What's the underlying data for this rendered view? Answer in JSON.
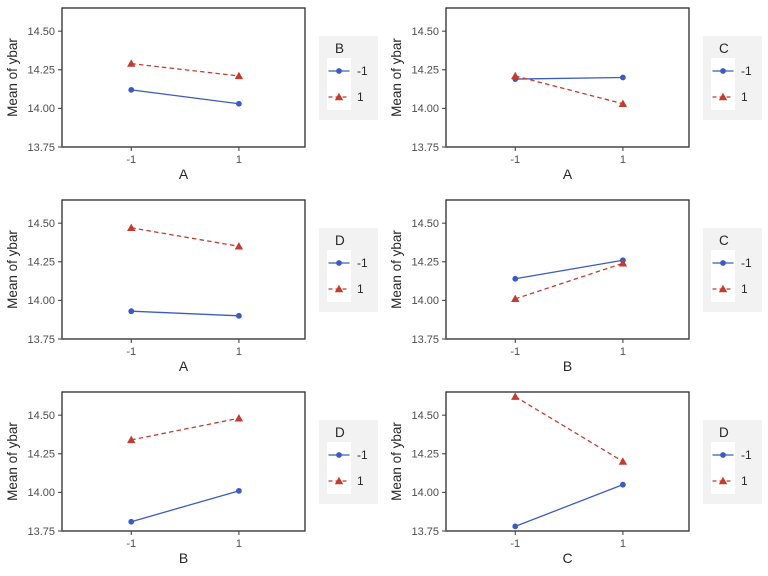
{
  "colors": {
    "series_neg1": "#3C5BC0",
    "series_pos1": "#C23C32",
    "panel_border": "#3A3A3A",
    "tick_text": "#4D4D4D",
    "axis_text": "#262626",
    "legend_bg": "#F2F2F2",
    "legend_key_bg": "#FFFFFF",
    "background": "#FFFFFF"
  },
  "chart_data": [
    {
      "type": "line",
      "xlabel": "A",
      "ylabel": "Mean of ybar",
      "legend_title": "B",
      "legend_position": "right",
      "grid": false,
      "x_categories": [
        "-1",
        "1"
      ],
      "yticks": [
        13.75,
        14.0,
        14.25,
        14.5
      ],
      "ylim": [
        13.75,
        14.65
      ],
      "series": [
        {
          "name": "-1",
          "marker": "circle",
          "line": "solid",
          "color_key": "series_neg1",
          "values": [
            14.12,
            14.03
          ]
        },
        {
          "name": "1",
          "marker": "triangle",
          "line": "dashed",
          "color_key": "series_pos1",
          "values": [
            14.29,
            14.21
          ]
        }
      ]
    },
    {
      "type": "line",
      "xlabel": "A",
      "ylabel": "Mean of ybar",
      "legend_title": "C",
      "legend_position": "right",
      "grid": false,
      "x_categories": [
        "-1",
        "1"
      ],
      "yticks": [
        13.75,
        14.0,
        14.25,
        14.5
      ],
      "ylim": [
        13.75,
        14.65
      ],
      "series": [
        {
          "name": "-1",
          "marker": "circle",
          "line": "solid",
          "color_key": "series_neg1",
          "values": [
            14.19,
            14.2
          ]
        },
        {
          "name": "1",
          "marker": "triangle",
          "line": "dashed",
          "color_key": "series_pos1",
          "values": [
            14.21,
            14.03
          ]
        }
      ]
    },
    {
      "type": "line",
      "xlabel": "A",
      "ylabel": "Mean of ybar",
      "legend_title": "D",
      "legend_position": "right",
      "grid": false,
      "x_categories": [
        "-1",
        "1"
      ],
      "yticks": [
        13.75,
        14.0,
        14.25,
        14.5
      ],
      "ylim": [
        13.75,
        14.65
      ],
      "series": [
        {
          "name": "-1",
          "marker": "circle",
          "line": "solid",
          "color_key": "series_neg1",
          "values": [
            13.93,
            13.9
          ]
        },
        {
          "name": "1",
          "marker": "triangle",
          "line": "dashed",
          "color_key": "series_pos1",
          "values": [
            14.47,
            14.35
          ]
        }
      ]
    },
    {
      "type": "line",
      "xlabel": "B",
      "ylabel": "Mean of ybar",
      "legend_title": "C",
      "legend_position": "right",
      "grid": false,
      "x_categories": [
        "-1",
        "1"
      ],
      "yticks": [
        13.75,
        14.0,
        14.25,
        14.5
      ],
      "ylim": [
        13.75,
        14.65
      ],
      "series": [
        {
          "name": "-1",
          "marker": "circle",
          "line": "solid",
          "color_key": "series_neg1",
          "values": [
            14.14,
            14.26
          ]
        },
        {
          "name": "1",
          "marker": "triangle",
          "line": "dashed",
          "color_key": "series_pos1",
          "values": [
            14.01,
            14.24
          ]
        }
      ]
    },
    {
      "type": "line",
      "xlabel": "B",
      "ylabel": "Mean of ybar",
      "legend_title": "D",
      "legend_position": "right",
      "grid": false,
      "x_categories": [
        "-1",
        "1"
      ],
      "yticks": [
        13.75,
        14.0,
        14.25,
        14.5
      ],
      "ylim": [
        13.75,
        14.65
      ],
      "series": [
        {
          "name": "-1",
          "marker": "circle",
          "line": "solid",
          "color_key": "series_neg1",
          "values": [
            13.81,
            14.01
          ]
        },
        {
          "name": "1",
          "marker": "triangle",
          "line": "dashed",
          "color_key": "series_pos1",
          "values": [
            14.34,
            14.48
          ]
        }
      ]
    },
    {
      "type": "line",
      "xlabel": "C",
      "ylabel": "Mean of ybar",
      "legend_title": "D",
      "legend_position": "right",
      "grid": false,
      "x_categories": [
        "-1",
        "1"
      ],
      "yticks": [
        13.75,
        14.0,
        14.25,
        14.5
      ],
      "ylim": [
        13.75,
        14.65
      ],
      "series": [
        {
          "name": "-1",
          "marker": "circle",
          "line": "solid",
          "color_key": "series_neg1",
          "values": [
            13.78,
            14.05
          ]
        },
        {
          "name": "1",
          "marker": "triangle",
          "line": "dashed",
          "color_key": "series_pos1",
          "values": [
            14.62,
            14.2
          ]
        }
      ]
    }
  ]
}
